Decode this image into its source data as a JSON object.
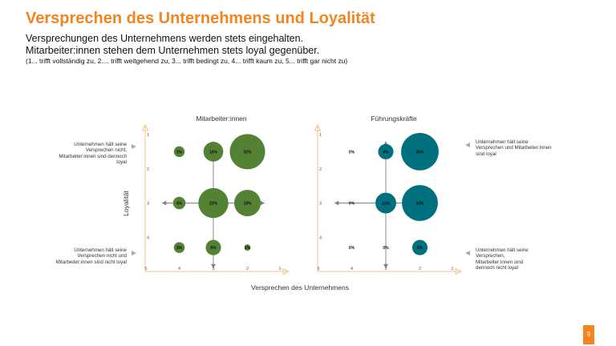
{
  "header": {
    "title": "Versprechen des Unternehmens und Loyalität",
    "line1": "Versprechungen des Unternehmens werden stets eingehalten.",
    "line2": "Mitarbeiter:innen stehen dem Unternehmen stets loyal gegenüber.",
    "scale_note": "(1... trifft vollständig zu, 2.... trifft weitgehend zu, 3... trifft bedingt zu, 4... trifft kaum zu, 5... trifft gar nicht zu)"
  },
  "axes": {
    "ylabel": "Loyalität",
    "xlabel": "Versprechen des Unternehmens"
  },
  "notes": {
    "top_left": "Unternehmen hält seine Versprechen nicht, Mitarbeiter:innen sind dennoch loyal",
    "bottom_left": "Unternehmen hält seine Versprechen nicht und Mitarbeiter:innen sind nicht loyal",
    "top_right": "Unternehmen hält seine Versprechen und Mitarbeiter:innen sind loyal",
    "bottom_right": "Unternehmen hält seine Versprechen, Mitarbeiter:innen sind dennoch nicht loyal"
  },
  "page_number": "9",
  "colors": {
    "title": "#f08522",
    "axis_frame": "#f5c38e",
    "mitarbeiter_bubble": "#548235",
    "fuehrung_bubble": "#00707f",
    "crosshair": "#7f7f7f"
  },
  "chart_data": [
    {
      "type": "scatter",
      "title": "Mitarbeiter:innen",
      "xlabel": "Versprechen des Unternehmens",
      "ylabel": "Loyalität",
      "xlim": [
        5,
        1
      ],
      "ylim": [
        1,
        5
      ],
      "x_ticks": [
        "5",
        "4",
        "3",
        "2",
        "1"
      ],
      "y_ticks": [
        "1",
        "2",
        "3",
        "4"
      ],
      "points": [
        {
          "x": 4,
          "y": 1.5,
          "value": 3,
          "label": "3%"
        },
        {
          "x": 3,
          "y": 1.5,
          "value": 10,
          "label": "10%"
        },
        {
          "x": 2,
          "y": 1.5,
          "value": 32,
          "label": "32%"
        },
        {
          "x": 4,
          "y": 3,
          "value": 4,
          "label": "4%"
        },
        {
          "x": 3,
          "y": 3,
          "value": 23,
          "label": "23%"
        },
        {
          "x": 2,
          "y": 3,
          "value": 18,
          "label": "18%"
        },
        {
          "x": 4,
          "y": 4.3,
          "value": 3,
          "label": "3%"
        },
        {
          "x": 3,
          "y": 4.3,
          "value": 6,
          "label": "6%"
        },
        {
          "x": 2,
          "y": 4.3,
          "value": 1,
          "label": "1%"
        }
      ]
    },
    {
      "type": "scatter",
      "title": "Führungskräfte",
      "xlabel": "Versprechen des Unternehmens",
      "ylabel": "Loyalität",
      "xlim": [
        5,
        1
      ],
      "ylim": [
        1,
        5
      ],
      "x_ticks": [
        "5",
        "4",
        "3",
        "2",
        "1"
      ],
      "y_ticks": [
        "1",
        "2",
        "3",
        "4"
      ],
      "points": [
        {
          "x": 4,
          "y": 1.5,
          "value": 0,
          "label": "0%"
        },
        {
          "x": 3,
          "y": 1.5,
          "value": 6,
          "label": "6%"
        },
        {
          "x": 2,
          "y": 1.5,
          "value": 36,
          "label": "36%"
        },
        {
          "x": 4,
          "y": 3,
          "value": 0,
          "label": "0%"
        },
        {
          "x": 3,
          "y": 3,
          "value": 11,
          "label": "11%"
        },
        {
          "x": 2,
          "y": 3,
          "value": 33,
          "label": "33%"
        },
        {
          "x": 4,
          "y": 4.3,
          "value": 0,
          "label": "0%"
        },
        {
          "x": 3,
          "y": 4.3,
          "value": 0,
          "label": "0%"
        },
        {
          "x": 2,
          "y": 4.3,
          "value": 6,
          "label": "6%"
        }
      ]
    }
  ]
}
